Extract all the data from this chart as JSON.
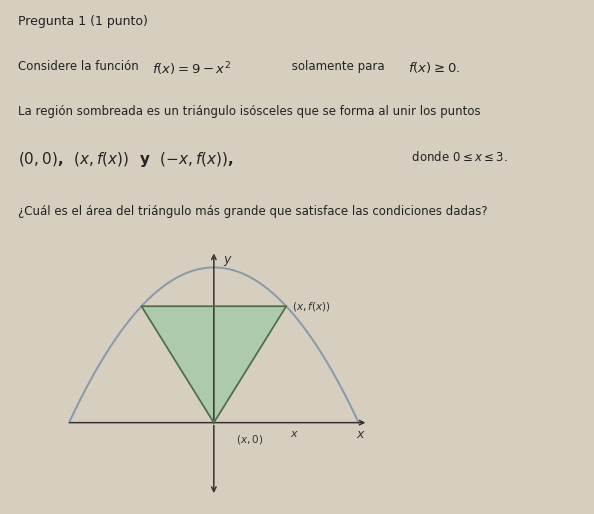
{
  "background_color": "#d6cfc0",
  "title_line1": "Pregunta 1 (1 punto)",
  "text_line1a": "Considere la función ",
  "text_line1b": "$f(x) = 9 - x^2$",
  "text_line1c": " solamente para ",
  "text_line1d": "$f(x) \\geq 0$.",
  "text_line2": "La región sombreada es un triángulo isósceles que se forma al unir los puntos",
  "text_line3a": "$(0, 0)$,  $(x, f(x))$  y  $(-x, f(x))$,",
  "text_line3b": " donde $0 \\leq x \\leq 3$.",
  "text_line4": "¿Cuál es el área del triángulo más grande que satisface las condiciones dadas?",
  "parabola_color": "#8899aa",
  "triangle_edge_color": "#4a6a4a",
  "triangle_fill_color": "#aacaaa",
  "axis_color": "#3a3030",
  "x_val": 1.5,
  "xlim": [
    -3.2,
    3.2
  ],
  "ylim": [
    -5.0,
    10.5
  ],
  "figsize": [
    5.94,
    5.14
  ],
  "dpi": 100
}
